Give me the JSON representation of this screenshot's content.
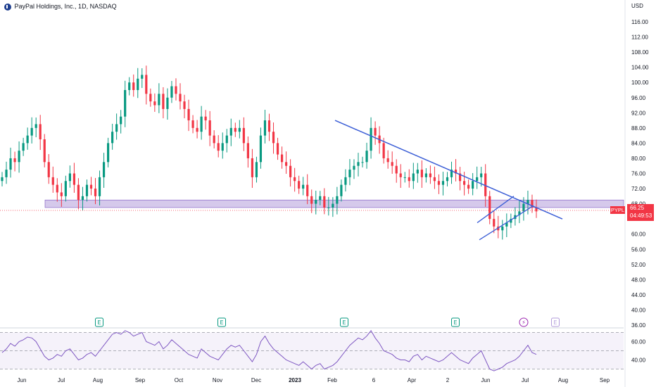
{
  "header": {
    "title": "PayPal Holdings, Inc., 1D, NASDAQ"
  },
  "price_axis": {
    "currency": "USD"
  },
  "last_price": {
    "ticker": "PYPL",
    "price": "66.25",
    "countdown": "04:49:53"
  },
  "colors": {
    "up": "#089981",
    "down": "#f23645",
    "trend": "#3b5ed6",
    "zone": "#b39ddb",
    "rsi": "#7e57c2"
  },
  "events": [
    {
      "x": "Aug",
      "icon": "earnings-icon",
      "label": "E"
    },
    {
      "x": "Nov",
      "icon": "earnings-icon",
      "label": "E"
    },
    {
      "x": "Feb",
      "icon": "earnings-icon",
      "label": "E"
    },
    {
      "x": "May",
      "icon": "earnings-icon",
      "label": "E"
    },
    {
      "x": "Jul",
      "icon": "dividend-split-icon",
      "label": "⚡"
    },
    {
      "x": "Aug",
      "icon": "earnings-icon",
      "label": "E"
    }
  ],
  "chart_data": {
    "type": "candlestick",
    "title": "PayPal Holdings, Inc., 1D, NASDAQ",
    "y_ticks": [
      "116.00",
      "112.00",
      "108.00",
      "104.00",
      "100.00",
      "96.00",
      "92.00",
      "88.00",
      "84.00",
      "80.00",
      "76.00",
      "72.00",
      "68.00",
      "64.00",
      "60.00",
      "56.00",
      "52.00",
      "48.00",
      "44.00",
      "40.00",
      "36.00"
    ],
    "x_ticks": [
      "Jun",
      "Jul",
      "Aug",
      "Sep",
      "Oct",
      "Nov",
      "Dec",
      "2023",
      "Feb",
      "6",
      "Apr",
      "2",
      "Jun",
      "Jul",
      "Aug",
      "Sep"
    ],
    "ylim": [
      34,
      120
    ],
    "closes": [
      75,
      77,
      80,
      79,
      82,
      84,
      86,
      88,
      89,
      85,
      79,
      75,
      73,
      71,
      70,
      74,
      76,
      73,
      69,
      70,
      73,
      72,
      70,
      75,
      79,
      84,
      87,
      89,
      91,
      98,
      100,
      98,
      101,
      102,
      97,
      95,
      94,
      97,
      93,
      96,
      99,
      97,
      95,
      93,
      90,
      88,
      87,
      91,
      90,
      86,
      84,
      82,
      84,
      86,
      88,
      87,
      88,
      84,
      80,
      75,
      79,
      86,
      90,
      87,
      84,
      81,
      79,
      78,
      75,
      74,
      72,
      73,
      70,
      68,
      69,
      70,
      67,
      67,
      68,
      70,
      73,
      75,
      77,
      78,
      79,
      79,
      82,
      88,
      86,
      84,
      80,
      79,
      78,
      76,
      75,
      75,
      74,
      76,
      77,
      75,
      76,
      75,
      74,
      73,
      74,
      75,
      77,
      76,
      74,
      73,
      72,
      74,
      75,
      76,
      70,
      64,
      62,
      61,
      62,
      63,
      64,
      65,
      66,
      68,
      69,
      67,
      66
    ],
    "trendline": {
      "from": [
        "Feb",
        90
      ],
      "to": [
        "Aug",
        64
      ]
    },
    "support_zone": [
      67,
      69
    ],
    "channel": {
      "lower": [
        [
          "May",
          58.5
        ],
        [
          "Jul",
          67.5
        ]
      ],
      "upper": [
        [
          "May",
          63
        ],
        [
          "Jul",
          70
        ]
      ]
    },
    "rsi": {
      "values": [
        48,
        52,
        58,
        55,
        60,
        62,
        65,
        64,
        60,
        52,
        44,
        40,
        42,
        46,
        44,
        50,
        52,
        46,
        40,
        42,
        46,
        48,
        44,
        50,
        56,
        62,
        68,
        70,
        68,
        72,
        70,
        66,
        68,
        70,
        60,
        58,
        56,
        60,
        52,
        56,
        62,
        58,
        54,
        50,
        46,
        44,
        42,
        52,
        48,
        44,
        42,
        40,
        46,
        52,
        56,
        54,
        56,
        50,
        44,
        38,
        46,
        60,
        66,
        58,
        52,
        48,
        44,
        40,
        38,
        36,
        34,
        38,
        34,
        30,
        34,
        36,
        30,
        32,
        34,
        38,
        44,
        50,
        56,
        60,
        64,
        62,
        66,
        72,
        64,
        58,
        50,
        48,
        46,
        42,
        40,
        40,
        38,
        44,
        46,
        40,
        44,
        42,
        40,
        38,
        40,
        44,
        48,
        44,
        40,
        38,
        36,
        42,
        46,
        50,
        40,
        30,
        28,
        30,
        32,
        36,
        38,
        40,
        44,
        50,
        56,
        48,
        46
      ],
      "levels": [
        70,
        50,
        30
      ],
      "y_ticks": [
        "60.00",
        "40.00"
      ],
      "ylim": [
        25,
        75
      ]
    }
  }
}
